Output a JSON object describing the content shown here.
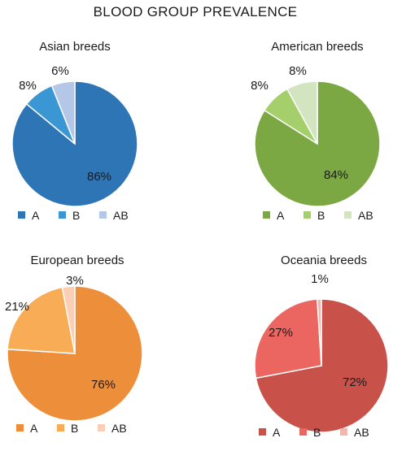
{
  "title": "BLOOD GROUP PREVALENCE",
  "chart_data": [
    {
      "type": "pie",
      "title": "Asian breeds",
      "categories": [
        "A",
        "B",
        "AB"
      ],
      "values": [
        86,
        8,
        6
      ],
      "labels": [
        "86%",
        "8%",
        "6%"
      ],
      "colors": [
        "#2E75B6",
        "#3A97D4",
        "#B4C7E7"
      ],
      "legend": "bottom"
    },
    {
      "type": "pie",
      "title": "American breeds",
      "categories": [
        "A",
        "B",
        "AB"
      ],
      "values": [
        84,
        8,
        8
      ],
      "labels": [
        "84%",
        "8%",
        "8%"
      ],
      "colors": [
        "#7BA843",
        "#A5CF6B",
        "#D2E4C0"
      ],
      "legend": "bottom"
    },
    {
      "type": "pie",
      "title": "European breeds",
      "categories": [
        "A",
        "B",
        "AB"
      ],
      "values": [
        76,
        21,
        3
      ],
      "labels": [
        "76%",
        "21%",
        "3%"
      ],
      "colors": [
        "#ED8F3A",
        "#F8AC56",
        "#FBCFB6"
      ],
      "legend": "bottom"
    },
    {
      "type": "pie",
      "title": "Oceania breeds",
      "categories": [
        "A",
        "B",
        "AB"
      ],
      "values": [
        72,
        27,
        1
      ],
      "labels": [
        "72%",
        "27%",
        "1%"
      ],
      "colors": [
        "#C8524A",
        "#EB6660",
        "#F1B6AE"
      ],
      "legend": "bottom"
    }
  ]
}
